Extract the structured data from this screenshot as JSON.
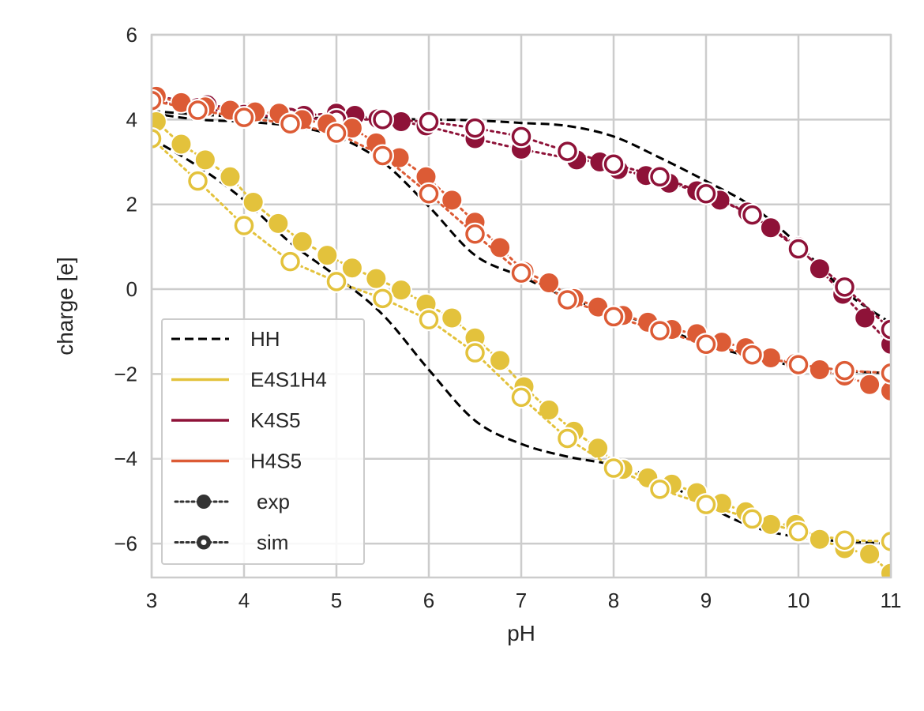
{
  "chart_data": {
    "type": "line",
    "title": "",
    "xlabel": "pH",
    "ylabel": "charge [e]",
    "xlim": [
      3,
      11
    ],
    "ylim": [
      -6.8,
      6
    ],
    "xticks": [
      3,
      4,
      5,
      6,
      7,
      8,
      9,
      10,
      11
    ],
    "yticks": [
      -6,
      -4,
      -2,
      0,
      2,
      4,
      6
    ],
    "xtick_labels": [
      "3",
      "4",
      "5",
      "6",
      "7",
      "8",
      "9",
      "10",
      "11"
    ],
    "ytick_labels": [
      "−6",
      "−4",
      "−2",
      "0",
      "2",
      "4",
      "6"
    ],
    "grid": true,
    "legend_position": "lower-left",
    "legend": [
      {
        "label": "HH",
        "style": "dashed-line",
        "color": "#000000"
      },
      {
        "label": "E4S1H4",
        "style": "solid-line",
        "color": "#E3C23C"
      },
      {
        "label": "K4S5",
        "style": "solid-line",
        "color": "#8E1238"
      },
      {
        "label": "H4S5",
        "style": "solid-line",
        "color": "#DC5B35"
      },
      {
        "label": "exp",
        "style": "filled-marker",
        "color": "#333333"
      },
      {
        "label": "sim",
        "style": "ring-marker",
        "color": "#333333"
      }
    ],
    "hh_curves": [
      {
        "name": "HH",
        "color": "#000000",
        "x": [
          3.0,
          3.5,
          4.0,
          4.5,
          5.0,
          5.5,
          6.0,
          6.5,
          7.0,
          7.5,
          8.0,
          8.5,
          9.0,
          9.5,
          10.0,
          10.5,
          11.0
        ],
        "y": [
          3.55,
          2.9,
          2.1,
          1.1,
          0.3,
          -0.6,
          -1.9,
          -3.1,
          -3.65,
          -3.95,
          -4.15,
          -4.5,
          -5.1,
          -5.6,
          -5.85,
          -5.95,
          -6.0
        ]
      },
      {
        "name": "HH",
        "color": "#000000",
        "x": [
          3.0,
          3.5,
          4.0,
          4.5,
          5.0,
          5.5,
          6.0,
          6.5,
          7.0,
          7.5,
          8.0,
          8.5,
          9.0,
          9.5,
          10.0,
          10.5,
          11.0
        ],
        "y": [
          4.15,
          4.0,
          3.95,
          3.85,
          3.6,
          3.0,
          1.95,
          0.8,
          0.3,
          -0.2,
          -0.55,
          -0.9,
          -1.3,
          -1.6,
          -1.82,
          -1.93,
          -1.98
        ]
      },
      {
        "name": "HH",
        "color": "#000000",
        "x": [
          3.0,
          3.5,
          4.0,
          4.5,
          5.0,
          5.5,
          6.0,
          6.5,
          7.0,
          7.5,
          8.0,
          8.5,
          9.0,
          9.5,
          10.0,
          10.5,
          11.0
        ],
        "y": [
          4.2,
          4.12,
          4.07,
          4.05,
          4.03,
          4.02,
          4.0,
          3.98,
          3.92,
          3.85,
          3.6,
          3.1,
          2.55,
          1.95,
          1.05,
          -0.05,
          -0.8
        ]
      }
    ],
    "series": [
      {
        "name": "E4S1H4",
        "kind": "exp",
        "color": "#E3C23C",
        "x": [
          3.05,
          3.32,
          3.58,
          3.85,
          4.1,
          4.37,
          4.63,
          4.9,
          5.17,
          5.43,
          5.7,
          5.97,
          6.25,
          6.5,
          6.77,
          7.03,
          7.3,
          7.57,
          7.83,
          8.1,
          8.37,
          8.63,
          8.9,
          9.17,
          9.43,
          9.7,
          9.97,
          10.23,
          10.5,
          10.77,
          11.0
        ],
        "y": [
          3.95,
          3.42,
          3.05,
          2.65,
          2.05,
          1.55,
          1.12,
          0.8,
          0.5,
          0.25,
          -0.02,
          -0.35,
          -0.68,
          -1.15,
          -1.68,
          -2.3,
          -2.85,
          -3.35,
          -3.75,
          -4.25,
          -4.45,
          -4.6,
          -4.8,
          -5.05,
          -5.25,
          -5.55,
          -5.55,
          -5.9,
          -6.12,
          -6.25,
          -6.7
        ]
      },
      {
        "name": "E4S1H4",
        "kind": "sim",
        "color": "#E3C23C",
        "x": [
          3.0,
          3.5,
          4.0,
          4.5,
          5.0,
          5.5,
          6.0,
          6.5,
          7.0,
          7.5,
          8.0,
          8.5,
          9.0,
          9.5,
          10.0,
          10.5,
          11.0
        ],
        "y": [
          3.55,
          2.55,
          1.5,
          0.65,
          0.18,
          -0.22,
          -0.72,
          -1.5,
          -2.55,
          -3.52,
          -4.22,
          -4.72,
          -5.08,
          -5.42,
          -5.72,
          -5.92,
          -5.95
        ]
      },
      {
        "name": "K4S5",
        "kind": "exp",
        "color": "#8E1238",
        "x": [
          3.05,
          3.6,
          4.1,
          4.65,
          5.0,
          5.2,
          5.45,
          5.7,
          5.97,
          6.5,
          7.0,
          7.6,
          7.85,
          8.05,
          8.35,
          8.6,
          8.9,
          9.15,
          9.45,
          9.7,
          10.0,
          10.23,
          10.48,
          10.72,
          11.0
        ],
        "y": [
          4.55,
          4.35,
          4.2,
          4.1,
          4.15,
          4.1,
          4.02,
          3.95,
          3.85,
          3.55,
          3.3,
          3.05,
          3.0,
          2.82,
          2.68,
          2.5,
          2.32,
          2.1,
          1.82,
          1.45,
          1.0,
          0.48,
          -0.12,
          -0.68,
          -1.3
        ]
      },
      {
        "name": "K4S5",
        "kind": "sim",
        "color": "#8E1238",
        "x": [
          3.0,
          3.5,
          4.0,
          4.5,
          5.0,
          5.5,
          6.0,
          6.5,
          7.0,
          7.5,
          8.0,
          8.5,
          9.0,
          9.5,
          10.0,
          10.5,
          11.0
        ],
        "y": [
          4.45,
          4.28,
          4.12,
          4.05,
          4.0,
          4.0,
          3.95,
          3.8,
          3.6,
          3.25,
          2.95,
          2.65,
          2.25,
          1.75,
          0.95,
          0.05,
          -0.95
        ]
      },
      {
        "name": "H4S5",
        "kind": "exp",
        "color": "#DC5B35",
        "x": [
          3.05,
          3.32,
          3.58,
          3.85,
          4.12,
          4.38,
          4.63,
          4.9,
          5.17,
          5.43,
          5.68,
          5.97,
          6.25,
          6.5,
          6.77,
          7.03,
          7.3,
          7.57,
          7.83,
          8.1,
          8.37,
          8.63,
          8.9,
          9.17,
          9.43,
          9.7,
          9.97,
          10.23,
          10.5,
          10.77,
          11.0
        ],
        "y": [
          4.55,
          4.4,
          4.3,
          4.22,
          4.18,
          4.15,
          4.0,
          3.9,
          3.8,
          3.45,
          3.1,
          2.65,
          2.1,
          1.58,
          0.98,
          0.42,
          0.15,
          -0.22,
          -0.42,
          -0.62,
          -0.78,
          -0.95,
          -1.05,
          -1.25,
          -1.38,
          -1.62,
          -1.75,
          -1.9,
          -2.05,
          -2.25,
          -2.4
        ]
      },
      {
        "name": "H4S5",
        "kind": "sim",
        "color": "#DC5B35",
        "x": [
          3.0,
          3.5,
          4.0,
          4.5,
          5.0,
          5.5,
          6.0,
          6.5,
          7.0,
          7.5,
          8.0,
          8.5,
          9.0,
          9.5,
          10.0,
          10.5,
          11.0
        ],
        "y": [
          4.45,
          4.22,
          4.05,
          3.9,
          3.68,
          3.15,
          2.25,
          1.3,
          0.38,
          -0.25,
          -0.65,
          -0.98,
          -1.3,
          -1.55,
          -1.78,
          -1.92,
          -1.98
        ]
      }
    ]
  }
}
